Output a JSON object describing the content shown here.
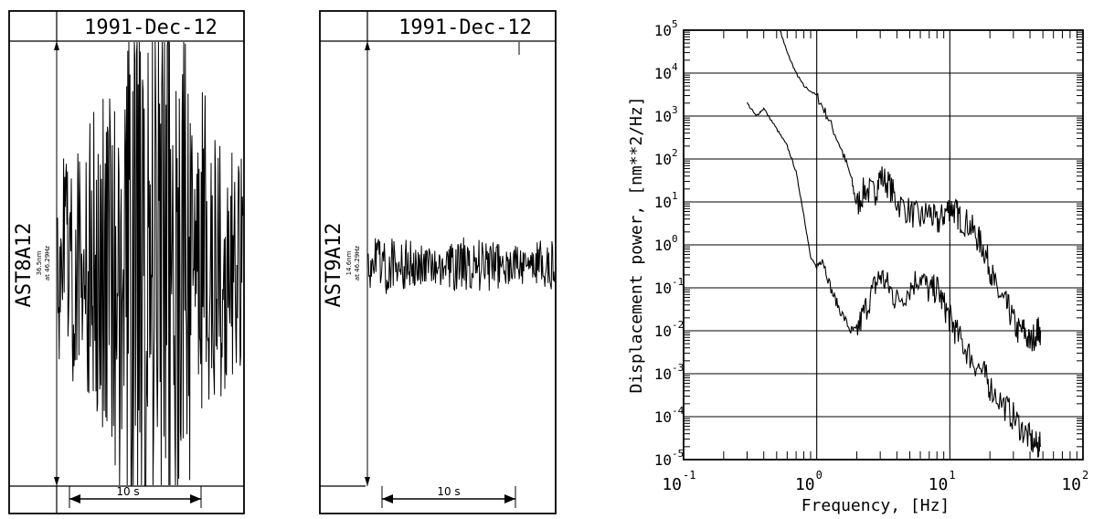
{
  "seismogram_left": {
    "date": "1991-Dec-12",
    "station": "AST8A12",
    "amplitude_note": "36.5nm",
    "frequency_note": "at 46.29Hz",
    "scale_label": "10 s"
  },
  "seismogram_right": {
    "date": "1991-Dec-12",
    "station": "AST9A12",
    "amplitude_note": "14.6nm",
    "frequency_note": "at 46.29Hz",
    "scale_label": "10 s"
  },
  "chart_data": {
    "type": "line",
    "title": "",
    "xlabel": "Frequency,  [Hz]",
    "ylabel": "Displacement power,  [nm**2/Hz]",
    "x_scale": "log",
    "y_scale": "log",
    "xlim": [
      0.1,
      100
    ],
    "ylim": [
      1e-05,
      100000
    ],
    "x_ticks": [
      {
        "base": "10",
        "exp": "-1"
      },
      {
        "base": "10",
        "exp": "0"
      },
      {
        "base": "10",
        "exp": "1"
      },
      {
        "base": "10",
        "exp": "2"
      }
    ],
    "y_ticks": [
      {
        "base": "10",
        "exp": "-5"
      },
      {
        "base": "10",
        "exp": "-4"
      },
      {
        "base": "10",
        "exp": "-3"
      },
      {
        "base": "10",
        "exp": "-2"
      },
      {
        "base": "10",
        "exp": "-1"
      },
      {
        "base": "10",
        "exp": "0"
      },
      {
        "base": "10",
        "exp": "1"
      },
      {
        "base": "10",
        "exp": "2"
      },
      {
        "base": "10",
        "exp": "3"
      },
      {
        "base": "10",
        "exp": "4"
      },
      {
        "base": "10",
        "exp": "5"
      }
    ],
    "grid": true,
    "series": [
      {
        "x": [
          0.53,
          0.6,
          0.7,
          0.8,
          1.0,
          1.2,
          1.5,
          1.8,
          2.0,
          2.3,
          2.7,
          3.0,
          3.5,
          4.0,
          5.0,
          6.0,
          7.0,
          8.0,
          9.0,
          10.0,
          11.0,
          12.0,
          14.0,
          16.0,
          18.0,
          20.0,
          22.0,
          25.0,
          28.0,
          32.0,
          36.0,
          40.0,
          45.0,
          48.0
        ],
        "y": [
          100000,
          30000,
          10000,
          5000,
          3000,
          1000,
          200,
          40,
          8,
          20,
          15,
          40,
          25,
          10,
          6,
          4,
          6,
          3,
          5,
          8,
          6,
          4,
          3,
          1.5,
          0.8,
          0.3,
          0.1,
          0.05,
          0.03,
          0.01,
          0.01,
          0.005,
          0.01,
          0.01
        ]
      },
      {
        "x": [
          0.3,
          0.35,
          0.4,
          0.5,
          0.6,
          0.7,
          0.8,
          0.9,
          1.0,
          1.1,
          1.3,
          1.5,
          1.8,
          2.0,
          2.3,
          2.7,
          3.0,
          3.5,
          4.0,
          5.0,
          6.0,
          7.0,
          8.0,
          9.0,
          10.0,
          11.0,
          13.0,
          15.0,
          18.0,
          20.0,
          25.0,
          30.0,
          35.0,
          40.0,
          45.0,
          48.0
        ],
        "y": [
          2000,
          1000,
          1500,
          500,
          200,
          50,
          5,
          0.5,
          0.3,
          0.5,
          0.08,
          0.03,
          0.01,
          0.01,
          0.03,
          0.1,
          0.2,
          0.1,
          0.05,
          0.1,
          0.2,
          0.08,
          0.1,
          0.04,
          0.02,
          0.01,
          0.004,
          0.002,
          0.001,
          0.0005,
          0.0002,
          0.0001,
          5e-05,
          3e-05,
          2e-05,
          2e-05
        ]
      }
    ]
  }
}
